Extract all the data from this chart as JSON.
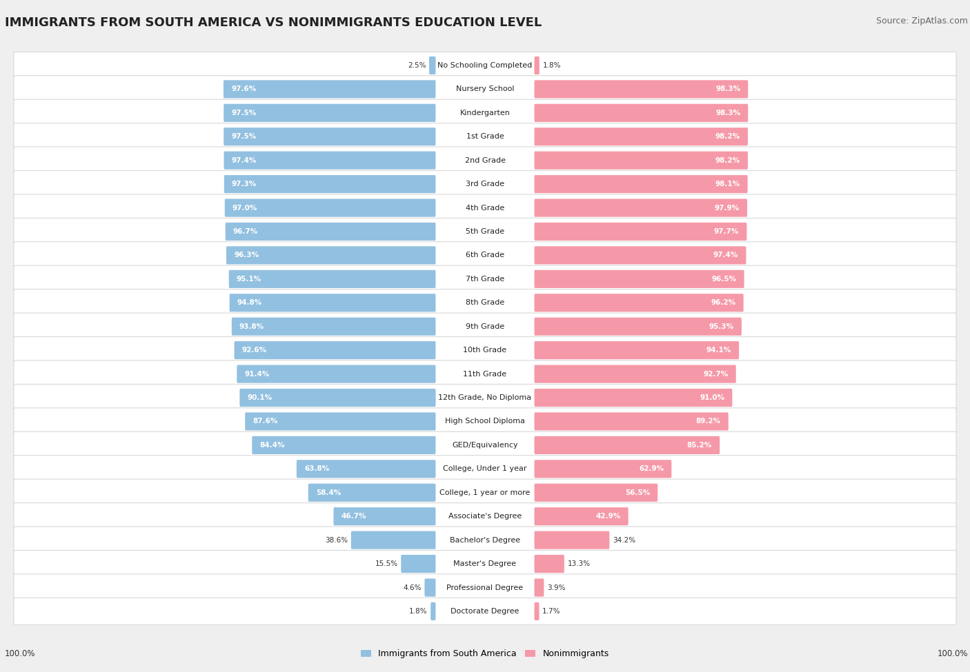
{
  "title": "IMMIGRANTS FROM SOUTH AMERICA VS NONIMMIGRANTS EDUCATION LEVEL",
  "source": "Source: ZipAtlas.com",
  "categories": [
    "No Schooling Completed",
    "Nursery School",
    "Kindergarten",
    "1st Grade",
    "2nd Grade",
    "3rd Grade",
    "4th Grade",
    "5th Grade",
    "6th Grade",
    "7th Grade",
    "8th Grade",
    "9th Grade",
    "10th Grade",
    "11th Grade",
    "12th Grade, No Diploma",
    "High School Diploma",
    "GED/Equivalency",
    "College, Under 1 year",
    "College, 1 year or more",
    "Associate's Degree",
    "Bachelor's Degree",
    "Master's Degree",
    "Professional Degree",
    "Doctorate Degree"
  ],
  "immigrants": [
    2.5,
    97.6,
    97.5,
    97.5,
    97.4,
    97.3,
    97.0,
    96.7,
    96.3,
    95.1,
    94.8,
    93.8,
    92.6,
    91.4,
    90.1,
    87.6,
    84.4,
    63.8,
    58.4,
    46.7,
    38.6,
    15.5,
    4.6,
    1.8
  ],
  "nonimmigrants": [
    1.8,
    98.3,
    98.3,
    98.2,
    98.2,
    98.1,
    97.9,
    97.7,
    97.4,
    96.5,
    96.2,
    95.3,
    94.1,
    92.7,
    91.0,
    89.2,
    85.2,
    62.9,
    56.5,
    42.9,
    34.2,
    13.3,
    3.9,
    1.7
  ],
  "immigrant_color": "#92c0e0",
  "nonimmigrant_color": "#f599a8",
  "background_color": "#efefef",
  "row_bg_color": "#ffffff",
  "row_border_color": "#d8d8d8",
  "legend_labels": [
    "Immigrants from South America",
    "Nonimmigrants"
  ],
  "title_fontsize": 13,
  "source_fontsize": 9,
  "label_fontsize": 8,
  "value_fontsize": 7.5,
  "legend_fontsize": 9
}
